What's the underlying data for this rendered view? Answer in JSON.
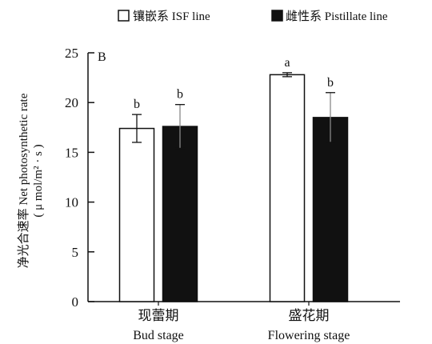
{
  "chart_data": {
    "type": "bar",
    "panel_label": "B",
    "categories": [
      {
        "cn": "现蕾期",
        "en": "Bud stage"
      },
      {
        "cn": "盛花期",
        "en": "Flowering stage"
      }
    ],
    "series": [
      {
        "name": "镶嵌系 ISF line",
        "fill": "#ffffff",
        "stroke": "#111111",
        "values": [
          17.4,
          22.8
        ],
        "errors": [
          1.4,
          0.2
        ],
        "letters": [
          "b",
          "a"
        ]
      },
      {
        "name": "雌性系 Pistillate line",
        "fill": "#111111",
        "stroke": "#111111",
        "values": [
          17.6,
          18.5
        ],
        "errors": [
          2.2,
          2.5
        ],
        "letters": [
          "b",
          "b"
        ]
      }
    ],
    "ylabel_line1": "净光合速率 Net photosynthetic rate",
    "ylabel_line2": "( μ mol/m² · s )",
    "ylim": [
      0,
      25
    ],
    "yticks": [
      0,
      5,
      10,
      15,
      20,
      25
    ],
    "legend_position": "top"
  }
}
